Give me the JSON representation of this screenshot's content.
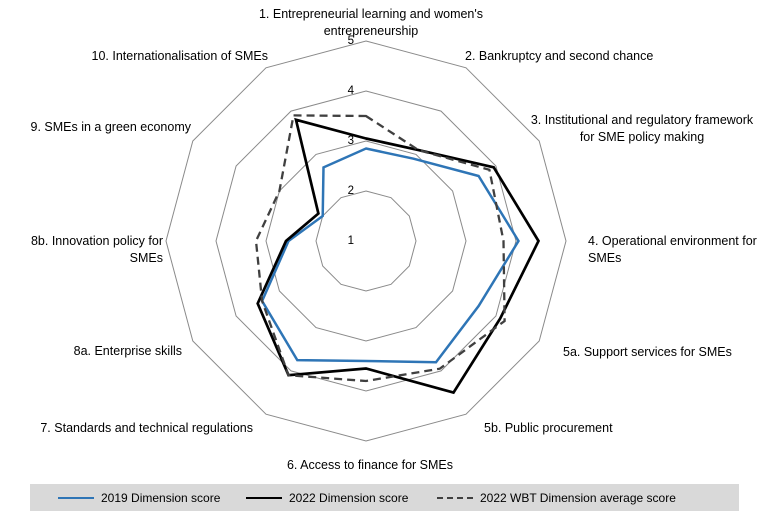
{
  "colors": {
    "legend_background": "#D9D9D9",
    "grid": "#8A8A8A",
    "series_2019": "#2E75B6",
    "series_2022": "#000000",
    "series_wbt_avg": "#404040"
  },
  "axis_ticks": [
    "1",
    "2",
    "3",
    "4",
    "5"
  ],
  "chart_data": {
    "type": "radar",
    "categories": [
      "1. Entrepreneurial learning and women's\nentrepreneurship",
      "2. Bankruptcy and second chance",
      "3. Institutional and regulatory framework\nfor SME policy making",
      "4. Operational environment for SMEs",
      "5a. Support services for SMEs",
      "5b. Public procurement",
      "6. Access to finance for SMEs",
      "7. Standards and technical regulations",
      "8a. Enterprise skills",
      "8b. Innovation policy for SMEs",
      "9. SMEs in a green economy",
      "10. Internationalisation of SMEs"
    ],
    "axis": {
      "min": 1,
      "max": 5,
      "ticks": [
        1,
        2,
        3,
        4,
        5
      ],
      "grid": true
    },
    "legend_position": "bottom",
    "series": [
      {
        "name": "2019 Dimension score",
        "color": "#2E75B6",
        "dash": null,
        "values": [
          2.85,
          2.9,
          3.6,
          4.05,
          3.6,
          3.8,
          3.4,
          3.75,
          3.4,
          2.55,
          2.0,
          2.7
        ]
      },
      {
        "name": "2022 Dimension score",
        "color": "#000000",
        "dash": null,
        "values": [
          3.05,
          3.1,
          3.95,
          4.45,
          4.1,
          4.5,
          3.55,
          4.1,
          3.5,
          2.6,
          2.1,
          3.8
        ]
      },
      {
        "name": "2022 WBT Dimension average score",
        "color": "#404040",
        "dash": "8 5",
        "values": [
          3.5,
          3.1,
          3.85,
          3.75,
          4.2,
          3.95,
          3.8,
          4.1,
          3.4,
          3.2,
          3.0,
          3.9
        ]
      }
    ]
  }
}
